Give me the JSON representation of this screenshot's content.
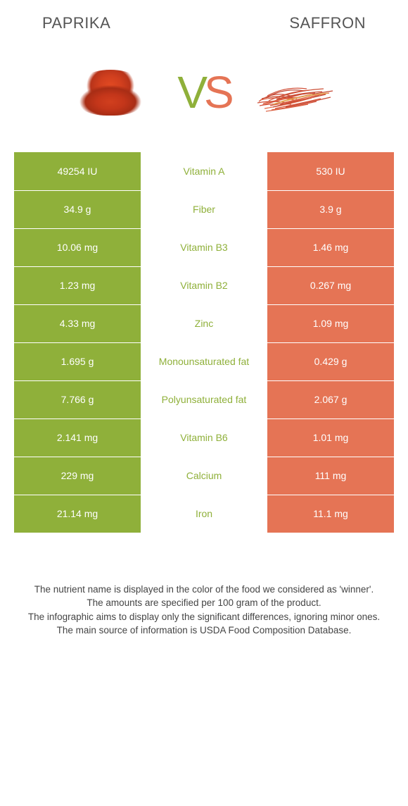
{
  "header": {
    "left": "Paprika",
    "right": "Saffron"
  },
  "vs": {
    "v": "V",
    "s": "S"
  },
  "colors": {
    "left_bg": "#8fb03a",
    "right_bg": "#e57455",
    "left_text": "#8fb03a",
    "right_text": "#e57455",
    "white": "#ffffff"
  },
  "table": {
    "rows": [
      {
        "left": "49254 IU",
        "label": "Vitamin A",
        "right": "530 IU",
        "winner": "left"
      },
      {
        "left": "34.9 g",
        "label": "Fiber",
        "right": "3.9 g",
        "winner": "left"
      },
      {
        "left": "10.06 mg",
        "label": "Vitamin B3",
        "right": "1.46 mg",
        "winner": "left"
      },
      {
        "left": "1.23 mg",
        "label": "Vitamin B2",
        "right": "0.267 mg",
        "winner": "left"
      },
      {
        "left": "4.33 mg",
        "label": "Zinc",
        "right": "1.09 mg",
        "winner": "left"
      },
      {
        "left": "1.695 g",
        "label": "Monounsaturated fat",
        "right": "0.429 g",
        "winner": "left"
      },
      {
        "left": "7.766 g",
        "label": "Polyunsaturated fat",
        "right": "2.067 g",
        "winner": "left"
      },
      {
        "left": "2.141 mg",
        "label": "Vitamin B6",
        "right": "1.01 mg",
        "winner": "left"
      },
      {
        "left": "229 mg",
        "label": "Calcium",
        "right": "111 mg",
        "winner": "left"
      },
      {
        "left": "21.14 mg",
        "label": "Iron",
        "right": "11.1 mg",
        "winner": "left"
      }
    ]
  },
  "footer": {
    "line1": "The nutrient name is displayed in the color of the food we considered as 'winner'.",
    "line2": "The amounts are specified per 100 gram of the product.",
    "line3": "The infographic aims to display only the significant differences, ignoring minor ones.",
    "line4": "The main source of information is USDA Food Composition Database."
  }
}
